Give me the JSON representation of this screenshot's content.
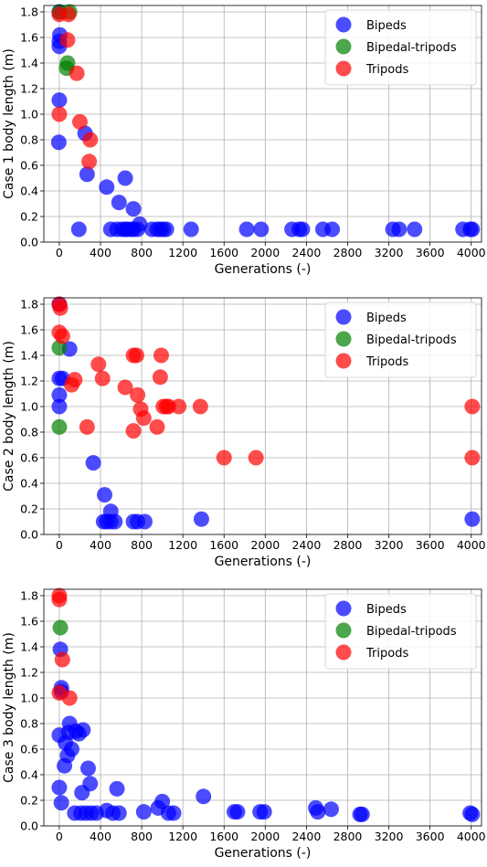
{
  "chart_data": [
    {
      "type": "scatter",
      "ylabel": "Case 1 body length (m)",
      "xlabel": "Generations (-)",
      "xlim": [
        -150,
        4100
      ],
      "ylim": [
        0,
        1.85
      ],
      "xticks": [
        "0",
        "400",
        "800",
        "1200",
        "1600",
        "2000",
        "2400",
        "2800",
        "3200",
        "3600",
        "4000"
      ],
      "yticks": [
        "0.0",
        "0.2",
        "0.4",
        "0.6",
        "0.8",
        "1.0",
        "1.2",
        "1.4",
        "1.6",
        "1.8"
      ],
      "grid": true,
      "legend": "top-right",
      "series": [
        {
          "name": "Bipeds",
          "color": "#0000ff",
          "points": [
            [
              0,
              1.8
            ],
            [
              5,
              1.62
            ],
            [
              0,
              1.53
            ],
            [
              0,
              1.57
            ],
            [
              0,
              1.11
            ],
            [
              -5,
              0.78
            ],
            [
              250,
              0.85
            ],
            [
              270,
              0.53
            ],
            [
              190,
              0.1
            ],
            [
              460,
              0.43
            ],
            [
              580,
              0.31
            ],
            [
              640,
              0.5
            ],
            [
              720,
              0.26
            ],
            [
              780,
              0.14
            ],
            [
              500,
              0.1
            ],
            [
              560,
              0.1
            ],
            [
              610,
              0.1
            ],
            [
              640,
              0.1
            ],
            [
              660,
              0.1
            ],
            [
              700,
              0.1
            ],
            [
              720,
              0.1
            ],
            [
              760,
              0.1
            ],
            [
              900,
              0.1
            ],
            [
              950,
              0.1
            ],
            [
              980,
              0.1
            ],
            [
              1010,
              0.1
            ],
            [
              1040,
              0.1
            ],
            [
              1280,
              0.1
            ],
            [
              1820,
              0.1
            ],
            [
              1960,
              0.1
            ],
            [
              2260,
              0.1
            ],
            [
              2330,
              0.1
            ],
            [
              2360,
              0.1
            ],
            [
              2560,
              0.1
            ],
            [
              2650,
              0.1
            ],
            [
              3240,
              0.1
            ],
            [
              3300,
              0.1
            ],
            [
              3450,
              0.1
            ],
            [
              3920,
              0.1
            ],
            [
              3990,
              0.1
            ],
            [
              4010,
              0.1
            ]
          ]
        },
        {
          "name": "Bipedal-tripods",
          "color": "#008000",
          "points": [
            [
              0,
              1.8
            ],
            [
              100,
              1.8
            ],
            [
              80,
              1.4
            ],
            [
              70,
              1.36
            ]
          ]
        },
        {
          "name": "Tripods",
          "color": "#ff0000",
          "points": [
            [
              0,
              1.78
            ],
            [
              90,
              1.78
            ],
            [
              80,
              1.58
            ],
            [
              170,
              1.32
            ],
            [
              0,
              1.0
            ],
            [
              200,
              0.94
            ],
            [
              300,
              0.8
            ],
            [
              290,
              0.63
            ]
          ]
        }
      ]
    },
    {
      "type": "scatter",
      "ylabel": "Case 2 body length (m)",
      "xlabel": "Generations (-)",
      "xlim": [
        -150,
        4100
      ],
      "ylim": [
        0,
        1.85
      ],
      "xticks": [
        "0",
        "400",
        "800",
        "1200",
        "1600",
        "2000",
        "2400",
        "2800",
        "3200",
        "3600",
        "4000"
      ],
      "yticks": [
        "0.0",
        "0.2",
        "0.4",
        "0.6",
        "0.8",
        "1.0",
        "1.2",
        "1.4",
        "1.6",
        "1.8"
      ],
      "grid": true,
      "legend": "top-right",
      "series": [
        {
          "name": "Bipeds",
          "color": "#0000ff",
          "points": [
            [
              0,
              1.8
            ],
            [
              100,
              1.45
            ],
            [
              30,
              1.22
            ],
            [
              0,
              1.22
            ],
            [
              0,
              1.09
            ],
            [
              0,
              1.0
            ],
            [
              330,
              0.56
            ],
            [
              440,
              0.31
            ],
            [
              500,
              0.18
            ],
            [
              430,
              0.1
            ],
            [
              460,
              0.1
            ],
            [
              500,
              0.1
            ],
            [
              540,
              0.1
            ],
            [
              720,
              0.1
            ],
            [
              760,
              0.1
            ],
            [
              830,
              0.1
            ],
            [
              1380,
              0.12
            ],
            [
              4010,
              0.12
            ]
          ]
        },
        {
          "name": "Bipedal-tripods",
          "color": "#008000",
          "points": [
            [
              0,
              1.46
            ],
            [
              0,
              0.84
            ]
          ]
        },
        {
          "name": "Tripods",
          "color": "#ff0000",
          "points": [
            [
              0,
              1.8
            ],
            [
              10,
              1.77
            ],
            [
              0,
              1.58
            ],
            [
              30,
              1.55
            ],
            [
              120,
              1.17
            ],
            [
              150,
              1.21
            ],
            [
              380,
              1.33
            ],
            [
              420,
              1.22
            ],
            [
              640,
              1.15
            ],
            [
              720,
              1.4
            ],
            [
              750,
              1.4
            ],
            [
              990,
              1.4
            ],
            [
              980,
              1.23
            ],
            [
              760,
              1.09
            ],
            [
              790,
              0.98
            ],
            [
              820,
              0.91
            ],
            [
              1010,
              1.0
            ],
            [
              1040,
              1.0
            ],
            [
              1060,
              1.0
            ],
            [
              1160,
              1.0
            ],
            [
              1370,
              1.0
            ],
            [
              270,
              0.84
            ],
            [
              720,
              0.81
            ],
            [
              950,
              0.84
            ],
            [
              1600,
              0.6
            ],
            [
              1910,
              0.6
            ],
            [
              4010,
              1.0
            ],
            [
              4010,
              0.6
            ]
          ]
        }
      ]
    },
    {
      "type": "scatter",
      "ylabel": "Case 3 body length (m)",
      "xlabel": "Generations (-)",
      "xlim": [
        -150,
        4100
      ],
      "ylim": [
        0,
        1.85
      ],
      "xticks": [
        "0",
        "400",
        "800",
        "1200",
        "1600",
        "2000",
        "2400",
        "2800",
        "3200",
        "3600",
        "4000"
      ],
      "yticks": [
        "0.0",
        "0.2",
        "0.4",
        "0.6",
        "0.8",
        "1.0",
        "1.2",
        "1.4",
        "1.6",
        "1.8"
      ],
      "grid": true,
      "legend": "top-right",
      "series": [
        {
          "name": "Bipeds",
          "color": "#0000ff",
          "points": [
            [
              10,
              1.38
            ],
            [
              20,
              1.08
            ],
            [
              20,
              1.05
            ],
            [
              0,
              0.71
            ],
            [
              100,
              0.8
            ],
            [
              90,
              0.73
            ],
            [
              60,
              0.65
            ],
            [
              120,
              0.6
            ],
            [
              80,
              0.55
            ],
            [
              50,
              0.47
            ],
            [
              160,
              0.74
            ],
            [
              190,
              0.72
            ],
            [
              230,
              0.75
            ],
            [
              280,
              0.45
            ],
            [
              300,
              0.33
            ],
            [
              220,
              0.26
            ],
            [
              0,
              0.3
            ],
            [
              20,
              0.18
            ],
            [
              150,
              0.1
            ],
            [
              210,
              0.1
            ],
            [
              260,
              0.1
            ],
            [
              310,
              0.1
            ],
            [
              360,
              0.1
            ],
            [
              460,
              0.12
            ],
            [
              520,
              0.1
            ],
            [
              580,
              0.1
            ],
            [
              560,
              0.29
            ],
            [
              820,
              0.11
            ],
            [
              960,
              0.14
            ],
            [
              1000,
              0.19
            ],
            [
              1060,
              0.1
            ],
            [
              1110,
              0.1
            ],
            [
              1400,
              0.23
            ],
            [
              1700,
              0.11
            ],
            [
              1730,
              0.11
            ],
            [
              1950,
              0.11
            ],
            [
              1990,
              0.11
            ],
            [
              2490,
              0.14
            ],
            [
              2510,
              0.11
            ],
            [
              2640,
              0.13
            ],
            [
              2920,
              0.09
            ],
            [
              2940,
              0.09
            ],
            [
              3990,
              0.1
            ],
            [
              4010,
              0.09
            ]
          ]
        },
        {
          "name": "Bipedal-tripods",
          "color": "#008000",
          "points": [
            [
              10,
              1.55
            ]
          ]
        },
        {
          "name": "Tripods",
          "color": "#ff0000",
          "points": [
            [
              0,
              1.8
            ],
            [
              0,
              1.77
            ],
            [
              30,
              1.3
            ],
            [
              0,
              1.04
            ],
            [
              100,
              1.0
            ]
          ]
        }
      ]
    }
  ]
}
